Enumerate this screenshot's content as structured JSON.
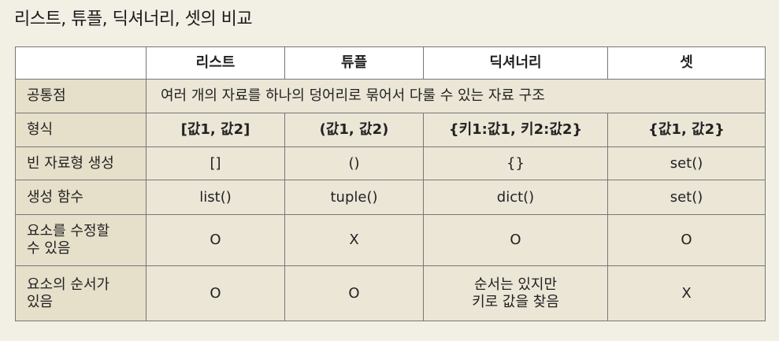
{
  "title": "리스트, 튜플, 딕셔너리, 셋의 비교",
  "headers": [
    "",
    "리스트",
    "튜플",
    "딕셔너리",
    "셋"
  ],
  "rows": {
    "common": {
      "label": "공통점",
      "value": "여러 개의 자료를 하나의 덩어리로 묶어서 다룰 수 있는 자료 구조"
    },
    "form": {
      "label": "형식",
      "cells": [
        "[값1, 값2]",
        "(값1, 값2)",
        "{키1:값1, 키2:값2}",
        "{값1, 값2}"
      ]
    },
    "empty": {
      "label": "빈 자료형 생성",
      "cells": [
        "[]",
        "()",
        "{}",
        "set()"
      ]
    },
    "func": {
      "label": "생성 함수",
      "cells": [
        "list()",
        "tuple()",
        "dict()",
        "set()"
      ]
    },
    "mutable": {
      "label": "요소를 수정할\n수 있음",
      "cells": [
        "O",
        "X",
        "O",
        "O"
      ]
    },
    "ordered": {
      "label": "요소의 순서가\n있음",
      "cells": [
        "O",
        "O",
        "순서는 있지만\n키로 값을 찾음",
        "X"
      ]
    }
  }
}
